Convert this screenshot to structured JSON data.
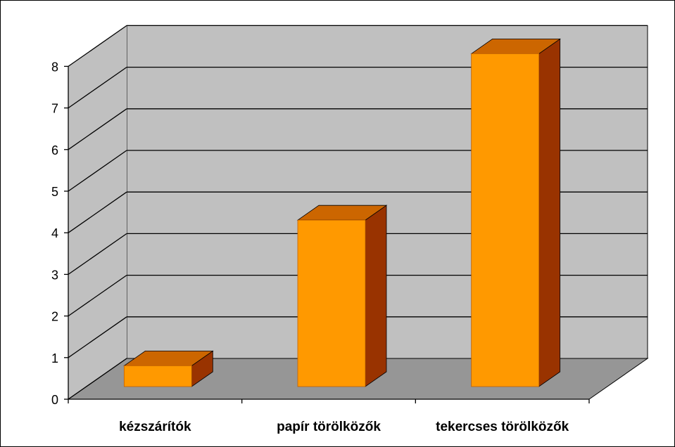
{
  "chart_data": {
    "type": "bar",
    "categories": [
      "kézszárítók",
      "papír törölközők",
      "tekercses törölközők"
    ],
    "values": [
      0.5,
      4,
      8
    ],
    "ylim": [
      0,
      8
    ],
    "yticks": [
      "0",
      "1",
      "2",
      "3",
      "4",
      "5",
      "6",
      "7",
      "8"
    ],
    "grid": true,
    "legend": "none",
    "three_d": true,
    "colors": {
      "bar_front": "#FF9900",
      "bar_top": "#CC6600",
      "bar_side": "#993300",
      "wall": "#C0C0C0",
      "floor": "#969696",
      "gridline": "#000000"
    }
  }
}
